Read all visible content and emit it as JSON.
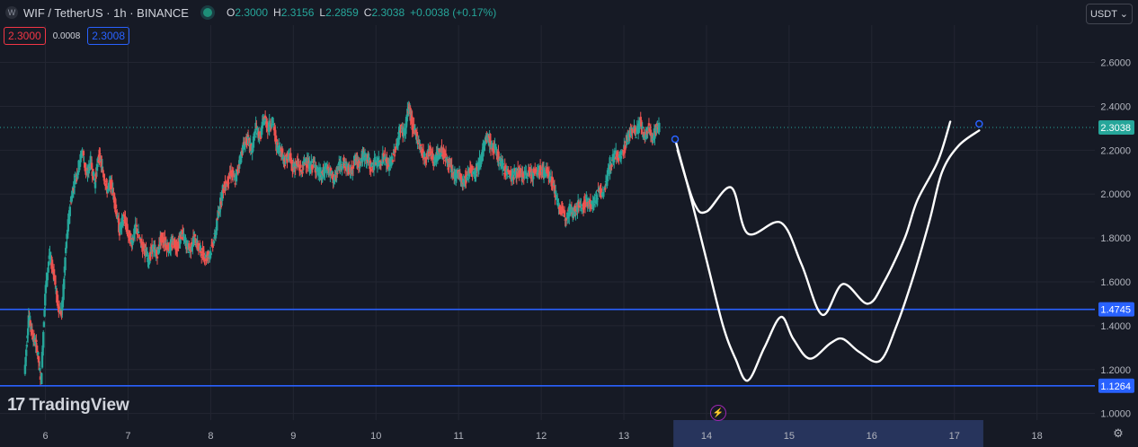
{
  "header": {
    "symbol_logo": "W",
    "title": "WIF / TetherUS · 1h · BINANCE",
    "o_label": "O",
    "o_value": "2.3000",
    "h_label": "H",
    "h_value": "2.3156",
    "l_label": "L",
    "l_value": "2.2859",
    "c_label": "C",
    "c_value": "2.3038",
    "change": "+0.0038 (+0.17%)"
  },
  "order_boxes": {
    "sell": "2.3000",
    "spread": "0.0008",
    "buy": "2.3008"
  },
  "currency_button": "USDT ⌄",
  "brand": {
    "mark": "17",
    "name": "TradingView"
  },
  "colors": {
    "background": "#161a25",
    "up": "#26a69a",
    "down": "#ef5350",
    "level_line": "#2962ff",
    "drawing": "#ffffff",
    "grid": "#232632"
  },
  "chart_data": {
    "type": "candlestick",
    "symbol": "WIF / TetherUS",
    "timeframe": "1h",
    "exchange": "BINANCE",
    "y_axis": {
      "scale": "linear",
      "range": [
        0.97,
        2.77
      ],
      "tick_labels": [
        "1.0000",
        "1.2000",
        "1.4000",
        "1.6000",
        "1.8000",
        "2.0000",
        "2.2000",
        "2.4000",
        "2.6000"
      ],
      "ticks": [
        1.0,
        1.2,
        1.4,
        1.6,
        1.8,
        2.0,
        2.2,
        2.4,
        2.6
      ]
    },
    "x_axis": {
      "range_days": [
        5.45,
        18.7
      ],
      "tick_labels": [
        "6",
        "7",
        "8",
        "9",
        "10",
        "11",
        "12",
        "13",
        "14",
        "15",
        "16",
        "17",
        "18"
      ],
      "ticks": [
        6,
        7,
        8,
        9,
        10,
        11,
        12,
        13,
        14,
        15,
        16,
        17,
        18
      ],
      "highlighted_range": [
        13.6,
        17.35
      ]
    },
    "grid": true,
    "current_price": {
      "value": 2.3038,
      "label": "2.3038"
    },
    "horizontal_levels": [
      {
        "value": 1.4745,
        "label": "1.4745"
      },
      {
        "value": 1.1264,
        "label": "1.1264"
      }
    ],
    "price_path": [
      [
        5.75,
        1.18
      ],
      [
        5.8,
        1.45
      ],
      [
        5.85,
        1.35
      ],
      [
        5.9,
        1.3
      ],
      [
        5.95,
        1.15
      ],
      [
        6.0,
        1.55
      ],
      [
        6.05,
        1.72
      ],
      [
        6.1,
        1.65
      ],
      [
        6.15,
        1.5
      ],
      [
        6.2,
        1.45
      ],
      [
        6.25,
        1.75
      ],
      [
        6.3,
        1.95
      ],
      [
        6.35,
        2.05
      ],
      [
        6.4,
        2.12
      ],
      [
        6.45,
        2.2
      ],
      [
        6.5,
        2.08
      ],
      [
        6.55,
        2.15
      ],
      [
        6.6,
        2.05
      ],
      [
        6.65,
        2.18
      ],
      [
        6.7,
        2.1
      ],
      [
        6.75,
        2.02
      ],
      [
        6.8,
        2.05
      ],
      [
        6.85,
        1.95
      ],
      [
        6.9,
        1.83
      ],
      [
        6.95,
        1.9
      ],
      [
        7.0,
        1.82
      ],
      [
        7.05,
        1.78
      ],
      [
        7.1,
        1.85
      ],
      [
        7.15,
        1.78
      ],
      [
        7.2,
        1.75
      ],
      [
        7.25,
        1.7
      ],
      [
        7.3,
        1.76
      ],
      [
        7.35,
        1.72
      ],
      [
        7.4,
        1.8
      ],
      [
        7.45,
        1.78
      ],
      [
        7.5,
        1.75
      ],
      [
        7.55,
        1.78
      ],
      [
        7.6,
        1.76
      ],
      [
        7.65,
        1.82
      ],
      [
        7.7,
        1.78
      ],
      [
        7.75,
        1.74
      ],
      [
        7.8,
        1.8
      ],
      [
        7.85,
        1.76
      ],
      [
        7.9,
        1.73
      ],
      [
        7.95,
        1.71
      ],
      [
        8.0,
        1.74
      ],
      [
        8.05,
        1.8
      ],
      [
        8.1,
        1.92
      ],
      [
        8.15,
        2.02
      ],
      [
        8.2,
        2.05
      ],
      [
        8.25,
        2.1
      ],
      [
        8.3,
        2.06
      ],
      [
        8.35,
        2.15
      ],
      [
        8.4,
        2.22
      ],
      [
        8.45,
        2.25
      ],
      [
        8.5,
        2.2
      ],
      [
        8.55,
        2.3
      ],
      [
        8.6,
        2.26
      ],
      [
        8.65,
        2.35
      ],
      [
        8.7,
        2.3
      ],
      [
        8.75,
        2.34
      ],
      [
        8.8,
        2.22
      ],
      [
        8.85,
        2.2
      ],
      [
        8.9,
        2.15
      ],
      [
        8.95,
        2.18
      ],
      [
        9.0,
        2.12
      ],
      [
        9.05,
        2.14
      ],
      [
        9.1,
        2.1
      ],
      [
        9.15,
        2.16
      ],
      [
        9.2,
        2.12
      ],
      [
        9.25,
        2.14
      ],
      [
        9.3,
        2.1
      ],
      [
        9.35,
        2.08
      ],
      [
        9.4,
        2.12
      ],
      [
        9.45,
        2.1
      ],
      [
        9.5,
        2.06
      ],
      [
        9.55,
        2.12
      ],
      [
        9.6,
        2.15
      ],
      [
        9.65,
        2.12
      ],
      [
        9.7,
        2.1
      ],
      [
        9.75,
        2.16
      ],
      [
        9.8,
        2.14
      ],
      [
        9.85,
        2.18
      ],
      [
        9.9,
        2.16
      ],
      [
        9.95,
        2.12
      ],
      [
        10.0,
        2.15
      ],
      [
        10.05,
        2.14
      ],
      [
        10.1,
        2.18
      ],
      [
        10.15,
        2.12
      ],
      [
        10.2,
        2.16
      ],
      [
        10.25,
        2.22
      ],
      [
        10.3,
        2.3
      ],
      [
        10.35,
        2.28
      ],
      [
        10.4,
        2.4
      ],
      [
        10.45,
        2.3
      ],
      [
        10.5,
        2.26
      ],
      [
        10.55,
        2.2
      ],
      [
        10.6,
        2.16
      ],
      [
        10.65,
        2.2
      ],
      [
        10.7,
        2.15
      ],
      [
        10.75,
        2.18
      ],
      [
        10.8,
        2.2
      ],
      [
        10.85,
        2.16
      ],
      [
        10.9,
        2.12
      ],
      [
        10.95,
        2.08
      ],
      [
        11.0,
        2.1
      ],
      [
        11.05,
        2.04
      ],
      [
        11.1,
        2.08
      ],
      [
        11.15,
        2.12
      ],
      [
        11.2,
        2.1
      ],
      [
        11.25,
        2.14
      ],
      [
        11.3,
        2.2
      ],
      [
        11.35,
        2.26
      ],
      [
        11.4,
        2.22
      ],
      [
        11.45,
        2.2
      ],
      [
        11.5,
        2.15
      ],
      [
        11.55,
        2.12
      ],
      [
        11.6,
        2.1
      ],
      [
        11.65,
        2.08
      ],
      [
        11.7,
        2.1
      ],
      [
        11.75,
        2.09
      ],
      [
        11.8,
        2.08
      ],
      [
        11.85,
        2.1
      ],
      [
        11.9,
        2.09
      ],
      [
        11.95,
        2.1
      ],
      [
        12.0,
        2.11
      ],
      [
        12.05,
        2.1
      ],
      [
        12.1,
        2.09
      ],
      [
        12.15,
        2.04
      ],
      [
        12.2,
        1.96
      ],
      [
        12.25,
        1.92
      ],
      [
        12.3,
        1.9
      ],
      [
        12.35,
        1.93
      ],
      [
        12.4,
        1.92
      ],
      [
        12.45,
        1.95
      ],
      [
        12.5,
        1.94
      ],
      [
        12.55,
        1.97
      ],
      [
        12.6,
        1.95
      ],
      [
        12.65,
        1.96
      ],
      [
        12.7,
        2.02
      ],
      [
        12.75,
        2.0
      ],
      [
        12.8,
        2.08
      ],
      [
        12.85,
        2.14
      ],
      [
        12.9,
        2.18
      ],
      [
        12.95,
        2.16
      ],
      [
        13.0,
        2.2
      ],
      [
        13.05,
        2.26
      ],
      [
        13.1,
        2.3
      ],
      [
        13.15,
        2.28
      ],
      [
        13.2,
        2.33
      ],
      [
        13.25,
        2.25
      ],
      [
        13.3,
        2.3
      ],
      [
        13.35,
        2.26
      ],
      [
        13.4,
        2.3
      ],
      [
        13.43,
        2.3038
      ]
    ],
    "drawn_projection_paths": [
      {
        "start": [
          13.62,
          2.25
        ],
        "points": [
          [
            13.62,
            2.25
          ],
          [
            13.8,
            2.0
          ],
          [
            14.0,
            1.7
          ],
          [
            14.2,
            1.4
          ],
          [
            14.35,
            1.25
          ],
          [
            14.5,
            1.15
          ],
          [
            14.7,
            1.3
          ],
          [
            14.9,
            1.44
          ],
          [
            15.05,
            1.34
          ],
          [
            15.25,
            1.25
          ],
          [
            15.5,
            1.32
          ],
          [
            15.65,
            1.34
          ],
          [
            15.85,
            1.28
          ],
          [
            16.1,
            1.24
          ],
          [
            16.3,
            1.4
          ],
          [
            16.5,
            1.62
          ],
          [
            16.7,
            1.88
          ],
          [
            16.85,
            2.1
          ],
          [
            17.05,
            2.22
          ],
          [
            17.3,
            2.29
          ]
        ],
        "end_marker": [
          17.3,
          2.32
        ]
      },
      {
        "points": [
          [
            13.65,
            2.2
          ],
          [
            13.85,
            1.96
          ],
          [
            14.0,
            1.92
          ],
          [
            14.3,
            2.03
          ],
          [
            14.5,
            1.82
          ],
          [
            14.9,
            1.87
          ],
          [
            15.15,
            1.68
          ],
          [
            15.4,
            1.45
          ],
          [
            15.65,
            1.59
          ],
          [
            15.95,
            1.5
          ],
          [
            16.15,
            1.6
          ],
          [
            16.4,
            1.8
          ],
          [
            16.55,
            1.97
          ],
          [
            16.8,
            2.15
          ],
          [
            16.95,
            2.33
          ]
        ]
      }
    ]
  },
  "icons": {
    "bolt": "bolt-icon",
    "settings": "gear-icon"
  },
  "bolt_glyph": "⚡",
  "gear_glyph": "⚙"
}
